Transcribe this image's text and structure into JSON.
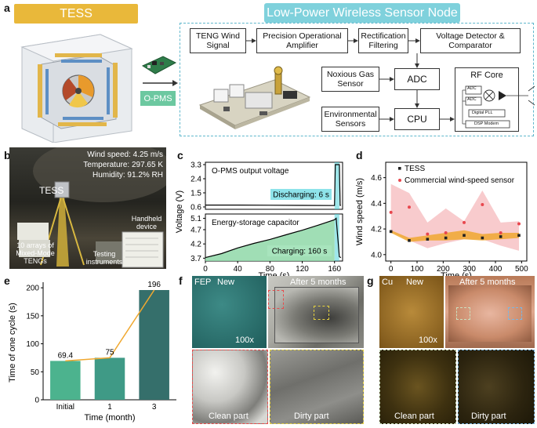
{
  "panel_labels": {
    "a": "a",
    "b": "b",
    "c": "c",
    "d": "d",
    "e": "e",
    "f": "f",
    "g": "g"
  },
  "panel_a": {
    "tess_title": "TESS",
    "node_title": "Low-Power Wireless Sensor Node",
    "opms_label": "O-PMS",
    "boxes": {
      "teng_signal": "TENG Wind Signal",
      "op_amp": "Precision Operational Amplifier",
      "rect": "Rectification Filtering",
      "voltage_det": "Voltage Detector & Comparator",
      "noxious": "Noxious Gas Sensor",
      "adc": "ADC",
      "env": "Environmental Sensors",
      "cpu": "CPU",
      "rf_core": "RF Core",
      "adc_small_1": "ADC",
      "adc_small_2": "ADC",
      "pll": "Digital PLL",
      "dsp": "DSP Modem"
    }
  },
  "panel_b": {
    "wind": "Wind speed: 4.25 m/s",
    "temp": "Temperature: 297.65 K",
    "humidity": "Humidity: 91.2% RH",
    "tess": "TESS",
    "handheld": "Handheld device",
    "arrays": "10 arrays of Mixed-Mode TENGs",
    "testing": "Testing instruments"
  },
  "chart_data": [
    {
      "type": "line",
      "panel": "c",
      "xlabel": "Time (s)",
      "ylabel": "Voltage (V)",
      "xlim": [
        0,
        170
      ],
      "xticks": [
        0,
        40,
        80,
        120,
        160
      ],
      "subplots": [
        {
          "annotation": "O-PMS output voltage",
          "box_label": "Discharging: 6 s",
          "ylim": [
            0.45,
            3.45
          ],
          "yticks": [
            0.6,
            1.5,
            2.4,
            3.3
          ],
          "series": [
            {
              "x": [
                0,
                40,
                80,
                120,
                160,
                161,
                162,
                166,
                167,
                168
              ],
              "y": [
                0.72,
                0.72,
                0.71,
                0.7,
                0.69,
                3.3,
                3.3,
                3.3,
                0.7,
                0.7
              ]
            }
          ]
        },
        {
          "annotation": "Energy-storage capacitor",
          "box_label": "Charging: 160 s",
          "ylim": [
            3.6,
            5.25
          ],
          "yticks": [
            3.7,
            4.2,
            4.7,
            5.1
          ],
          "series": [
            {
              "x": [
                0,
                20,
                40,
                60,
                80,
                100,
                120,
                140,
                160,
                162,
                166,
                168
              ],
              "y": [
                3.72,
                3.86,
                4.06,
                4.22,
                4.36,
                4.52,
                4.68,
                4.86,
                5.05,
                5.1,
                3.75,
                3.72
              ]
            }
          ]
        }
      ]
    },
    {
      "type": "line",
      "panel": "d",
      "xlabel": "Time (s)",
      "ylabel": "Wind speed (m/s)",
      "xlim": [
        -20,
        520
      ],
      "ylim": [
        3.95,
        4.72
      ],
      "xticks": [
        0,
        100,
        200,
        300,
        400,
        500
      ],
      "yticks": [
        4.0,
        4.2,
        4.4,
        4.6
      ],
      "legend": "top-right",
      "series": [
        {
          "name": "TESS",
          "color": "#222222",
          "x": [
            0,
            70,
            140,
            210,
            280,
            350,
            420,
            490
          ],
          "y": [
            4.18,
            4.11,
            4.12,
            4.13,
            4.15,
            4.13,
            4.14,
            4.15
          ],
          "band_upper": [
            4.19,
            4.13,
            4.15,
            4.17,
            4.19,
            4.16,
            4.17,
            4.17
          ],
          "band_lower": [
            4.17,
            4.1,
            4.11,
            4.11,
            4.12,
            4.11,
            4.12,
            4.13
          ]
        },
        {
          "name": "Commercial wind-speed sensor",
          "color": "#e8474e",
          "x": [
            0,
            70,
            140,
            210,
            280,
            350,
            420,
            490
          ],
          "y": [
            4.33,
            4.37,
            4.16,
            4.17,
            4.25,
            4.39,
            4.17,
            4.24
          ],
          "band_upper": [
            4.55,
            4.48,
            4.25,
            4.36,
            4.26,
            4.5,
            4.25,
            4.26
          ],
          "band_lower": [
            4.18,
            4.11,
            4.05,
            4.09,
            4.12,
            4.12,
            4.07,
            4.03
          ]
        }
      ]
    },
    {
      "type": "bar",
      "panel": "e",
      "xlabel": "Time (month)",
      "ylabel": "Time of one cycle (s)",
      "categories": [
        "Initial",
        "1",
        "3"
      ],
      "values": [
        69.4,
        75,
        196
      ],
      "value_labels": [
        "69.4",
        "75",
        "196"
      ],
      "ylim": [
        0,
        210
      ],
      "yticks": [
        0,
        50,
        100,
        150,
        200
      ],
      "colors": [
        "#4cb38e",
        "#3f9a86",
        "#356f6b"
      ],
      "line_color": "#f0a830"
    }
  ],
  "panel_f": {
    "material": "FEP",
    "new": "New",
    "after": "After 5 months",
    "zoom": "100x",
    "clean": "Clean part",
    "dirty": "Dirty part"
  },
  "panel_g": {
    "material": "Cu",
    "new": "New",
    "after": "After 5 months",
    "zoom": "100x",
    "clean": "Clean part",
    "dirty": "Dirty part"
  }
}
